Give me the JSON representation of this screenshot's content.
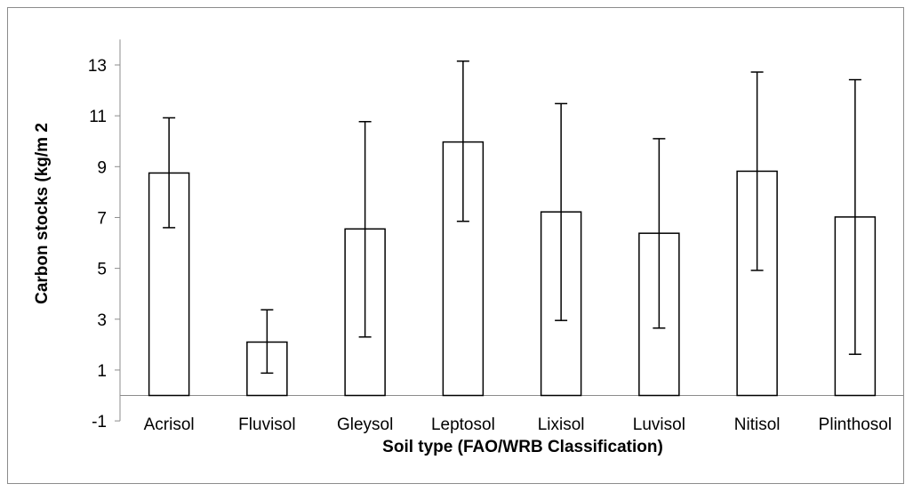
{
  "chart_data": {
    "type": "bar",
    "title": "",
    "xlabel": "Soil  type (FAO/WRB Classification)",
    "ylabel": "Carbon  stocks (kg/m 2",
    "ylim": [
      -1,
      14
    ],
    "yticks": [
      -1,
      1,
      3,
      5,
      7,
      9,
      11,
      13
    ],
    "categories": [
      "Acrisol",
      "Fluvisol",
      "Gleysol",
      "Leptosol",
      "Lixisol",
      "Luvisol",
      "Nitisol",
      "Plinthosol"
    ],
    "values": [
      8.75,
      2.1,
      6.55,
      9.97,
      7.22,
      6.38,
      8.82,
      7.02
    ],
    "error_low": [
      6.6,
      0.88,
      2.3,
      6.85,
      2.95,
      2.65,
      4.92,
      1.62
    ],
    "error_high": [
      10.92,
      3.37,
      10.77,
      13.15,
      11.48,
      10.1,
      12.72,
      12.42
    ],
    "grid": false,
    "legend": "none",
    "bar_fill": "#ffffff",
    "bar_stroke": "#000000"
  }
}
